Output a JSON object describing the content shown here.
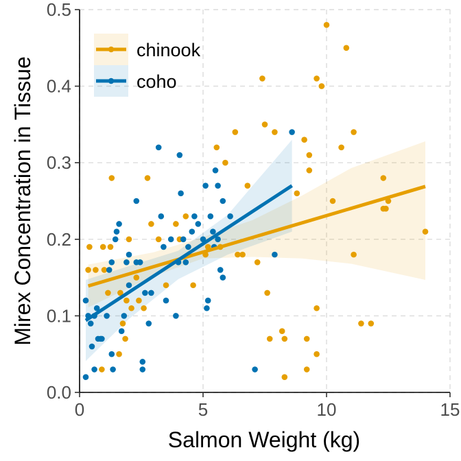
{
  "chart_data": {
    "type": "scatter",
    "xlabel": "Salmon Weight (kg)",
    "ylabel": "Mirex Concentration in Tissue",
    "xlim": [
      0,
      15
    ],
    "ylim": [
      0,
      0.5
    ],
    "x_ticks": [
      0,
      5,
      10,
      15
    ],
    "x_tick_labels": [
      "0",
      "5",
      "10",
      "15"
    ],
    "y_ticks": [
      0.0,
      0.1,
      0.2,
      0.3,
      0.4,
      0.5
    ],
    "y_tick_labels": [
      "0.0",
      "0.1",
      "0.2",
      "0.3",
      "0.4",
      "0.5"
    ],
    "grid": true,
    "legend_position": "top-left",
    "series": [
      {
        "name": "chinook",
        "color": "#E69F00",
        "points": [
          [
            0.35,
            0.16
          ],
          [
            0.4,
            0.19
          ],
          [
            0.65,
            0.16
          ],
          [
            0.9,
            0.03
          ],
          [
            0.95,
            0.19
          ],
          [
            1.0,
            0.16
          ],
          [
            1.15,
            0.13
          ],
          [
            1.25,
            0.19
          ],
          [
            1.3,
            0.28
          ],
          [
            1.6,
            0.05
          ],
          [
            1.65,
            0.13
          ],
          [
            1.75,
            0.09
          ],
          [
            1.85,
            0.07
          ],
          [
            1.9,
            0.12
          ],
          [
            2.0,
            0.2
          ],
          [
            2.1,
            0.11
          ],
          [
            2.3,
            0.15
          ],
          [
            2.4,
            0.12
          ],
          [
            2.6,
            0.11
          ],
          [
            2.75,
            0.28
          ],
          [
            2.9,
            0.22
          ],
          [
            3.2,
            0.2
          ],
          [
            3.5,
            0.14
          ],
          [
            3.9,
            0.22
          ],
          [
            4.05,
            0.2
          ],
          [
            4.3,
            0.23
          ],
          [
            4.6,
            0.14
          ],
          [
            5.1,
            0.18
          ],
          [
            5.2,
            0.19
          ],
          [
            5.55,
            0.32
          ],
          [
            5.7,
            0.19
          ],
          [
            5.9,
            0.3
          ],
          [
            6.3,
            0.34
          ],
          [
            6.4,
            0.18
          ],
          [
            6.6,
            0.18
          ],
          [
            6.8,
            0.27
          ],
          [
            7.4,
            0.41
          ],
          [
            7.5,
            0.35
          ],
          [
            7.6,
            0.13
          ],
          [
            7.7,
            0.07
          ],
          [
            7.9,
            0.34
          ],
          [
            8.2,
            0.08
          ],
          [
            8.3,
            0.07
          ],
          [
            8.3,
            0.02
          ],
          [
            8.8,
            0.26
          ],
          [
            9.1,
            0.33
          ],
          [
            9.2,
            0.07
          ],
          [
            9.3,
            0.29
          ],
          [
            9.3,
            0.31
          ],
          [
            9.2,
            0.03
          ],
          [
            9.6,
            0.41
          ],
          [
            9.8,
            0.4
          ],
          [
            10.0,
            0.48
          ],
          [
            10.25,
            0.25
          ],
          [
            10.6,
            0.32
          ],
          [
            10.8,
            0.45
          ],
          [
            11.1,
            0.34
          ],
          [
            11.1,
            0.18
          ],
          [
            11.4,
            0.09
          ],
          [
            11.8,
            0.09
          ],
          [
            12.3,
            0.28
          ],
          [
            12.3,
            0.24
          ],
          [
            12.4,
            0.24
          ],
          [
            12.5,
            0.25
          ],
          [
            14.0,
            0.21
          ],
          [
            9.6,
            0.11
          ],
          [
            9.6,
            0.05
          ],
          [
            7.2,
            0.17
          ]
        ],
        "trend": {
          "x": [
            0.35,
            14.0
          ],
          "y": [
            0.139,
            0.269
          ]
        },
        "ci": {
          "x": [
            0.35,
            3.0,
            5.0,
            7.0,
            9.0,
            11.0,
            14.0
          ],
          "lower": [
            0.111,
            0.152,
            0.175,
            0.177,
            0.175,
            0.168,
            0.147
          ],
          "upper": [
            0.167,
            0.183,
            0.203,
            0.225,
            0.257,
            0.293,
            0.328
          ]
        }
      },
      {
        "name": "coho",
        "color": "#0072B2",
        "points": [
          [
            0.25,
            0.02
          ],
          [
            0.25,
            0.12
          ],
          [
            0.35,
            0.1
          ],
          [
            0.45,
            0.09
          ],
          [
            0.5,
            0.06
          ],
          [
            0.6,
            0.1
          ],
          [
            0.6,
            0.03
          ],
          [
            0.7,
            0.11
          ],
          [
            0.75,
            0.07
          ],
          [
            0.85,
            0.07
          ],
          [
            0.9,
            0.07
          ],
          [
            1.1,
            0.1
          ],
          [
            1.2,
            0.16
          ],
          [
            1.3,
            0.17
          ],
          [
            1.35,
            0.03
          ],
          [
            1.45,
            0.2
          ],
          [
            1.5,
            0.21
          ],
          [
            1.6,
            0.22
          ],
          [
            1.7,
            0.08
          ],
          [
            1.8,
            0.1
          ],
          [
            1.9,
            0.17
          ],
          [
            2.0,
            0.14
          ],
          [
            2.3,
            0.17
          ],
          [
            2.45,
            0.17
          ],
          [
            2.55,
            0.04
          ],
          [
            2.55,
            0.03
          ],
          [
            2.65,
            0.13
          ],
          [
            2.8,
            0.09
          ],
          [
            2.9,
            0.13
          ],
          [
            3.2,
            0.32
          ],
          [
            3.3,
            0.23
          ],
          [
            3.4,
            0.19
          ],
          [
            3.5,
            0.12
          ],
          [
            3.7,
            0.2
          ],
          [
            4.0,
            0.17
          ],
          [
            4.05,
            0.31
          ],
          [
            4.1,
            0.26
          ],
          [
            4.2,
            0.2
          ],
          [
            4.4,
            0.19
          ],
          [
            4.55,
            0.21
          ],
          [
            4.65,
            0.23
          ],
          [
            4.8,
            0.22
          ],
          [
            5.0,
            0.2
          ],
          [
            5.1,
            0.27
          ],
          [
            5.15,
            0.11
          ],
          [
            5.2,
            0.12
          ],
          [
            5.3,
            0.23
          ],
          [
            5.4,
            0.21
          ],
          [
            5.45,
            0.19
          ],
          [
            5.5,
            0.29
          ],
          [
            5.6,
            0.2
          ],
          [
            5.6,
            0.27
          ],
          [
            5.7,
            0.16
          ],
          [
            5.8,
            0.15
          ],
          [
            5.8,
            0.25
          ],
          [
            6.1,
            0.23
          ],
          [
            7.1,
            0.03
          ],
          [
            7.9,
            0.18
          ],
          [
            8.6,
            0.34
          ],
          [
            3.9,
            0.1
          ],
          [
            2.0,
            0.18
          ],
          [
            2.3,
            0.25
          ],
          [
            1.3,
            0.05
          ],
          [
            4.3,
            0.17
          ]
        ],
        "trend": {
          "x": [
            0.25,
            8.6
          ],
          "y": [
            0.094,
            0.27
          ]
        },
        "ci": {
          "x": [
            0.25,
            2.0,
            4.0,
            6.0,
            8.6
          ],
          "lower": [
            0.041,
            0.096,
            0.148,
            0.18,
            0.21
          ],
          "upper": [
            0.147,
            0.165,
            0.185,
            0.232,
            0.33
          ]
        }
      }
    ]
  }
}
